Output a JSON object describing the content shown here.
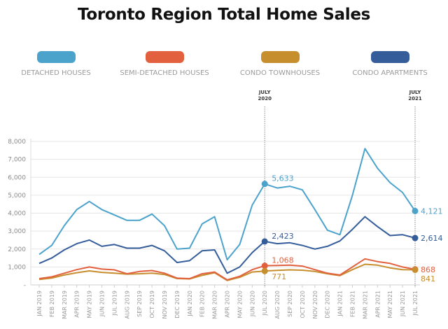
{
  "chart_data": {
    "type": "line",
    "title": "Toronto Region Total Home Sales",
    "xlabel": "",
    "ylabel": "",
    "ylim": [
      0,
      8000
    ],
    "yticks": [
      0,
      1000,
      2000,
      3000,
      4000,
      5000,
      6000,
      7000,
      8000
    ],
    "ytick_labels": [
      "-",
      "1,000",
      "2,000",
      "3,000",
      "4,000",
      "5,000",
      "6,000",
      "7,000",
      "8,000"
    ],
    "grid": true,
    "legend_placement": "top",
    "categories": [
      "JAN 2019",
      "FEB 2019",
      "MAR 2019",
      "APR 2019",
      "MAY 2019",
      "JUN 2019",
      "JUL 2019",
      "AUG 2019",
      "SEP 2019",
      "OCT 2019",
      "NOV 2019",
      "DEC 2019",
      "JAN 2020",
      "FEB 2020",
      "MAR 2020",
      "APR 2020",
      "MAY 2020",
      "JUN 2020",
      "JUL 2020",
      "AUG 2020",
      "SEP 2020",
      "OCT 2020",
      "NOV 2020",
      "DEC 2020",
      "JAN 2021",
      "FEB 2021",
      "MAR 2021",
      "APR 2021",
      "MAY 2021",
      "JUN 2021",
      "JUL 2021"
    ],
    "series": [
      {
        "name": "DETACHED HOUSES",
        "color": "#4ba3cc",
        "values": [
          1700,
          2200,
          3300,
          4200,
          4650,
          4200,
          3900,
          3600,
          3600,
          3950,
          3300,
          2000,
          2050,
          3400,
          3800,
          1400,
          2250,
          4450,
          5633,
          5400,
          5500,
          5300,
          4200,
          3050,
          2800,
          5000,
          7600,
          6500,
          5700,
          5150,
          4121
        ]
      },
      {
        "name": "SEMI-DETACHED HOUSES",
        "color": "#e2603e",
        "values": [
          350,
          450,
          650,
          850,
          1000,
          880,
          840,
          620,
          750,
          800,
          650,
          380,
          350,
          620,
          720,
          280,
          480,
          850,
          1068,
          1080,
          1100,
          1050,
          850,
          650,
          550,
          1000,
          1450,
          1300,
          1200,
          1000,
          868
        ]
      },
      {
        "name": "CONDO TOWNHOUSES",
        "color": "#c68e2d",
        "values": [
          300,
          380,
          550,
          680,
          780,
          700,
          650,
          600,
          620,
          650,
          580,
          350,
          330,
          530,
          680,
          250,
          420,
          720,
          771,
          810,
          840,
          820,
          750,
          620,
          520,
          850,
          1150,
          1100,
          950,
          850,
          841
        ]
      },
      {
        "name": "CONDO APARTMENTS",
        "color": "#345d9a",
        "values": [
          1200,
          1500,
          1950,
          2300,
          2500,
          2150,
          2250,
          2050,
          2050,
          2200,
          1900,
          1250,
          1350,
          1900,
          1950,
          650,
          1000,
          1800,
          2423,
          2300,
          2350,
          2200,
          2000,
          2150,
          2450,
          3100,
          3800,
          3250,
          2750,
          2800,
          2614
        ]
      }
    ],
    "reference_lines": [
      {
        "category": "JUL 2020",
        "label_line1": "JULY",
        "label_line2": "2020"
      },
      {
        "category": "JUL 2021",
        "label_line1": "JULY",
        "label_line2": "2021"
      }
    ],
    "annotations": [
      {
        "category": "JUL 2020",
        "series": "DETACHED HOUSES",
        "text": "5,633"
      },
      {
        "category": "JUL 2020",
        "series": "CONDO APARTMENTS",
        "text": "2,423"
      },
      {
        "category": "JUL 2020",
        "series": "SEMI-DETACHED HOUSES",
        "text": "1,068"
      },
      {
        "category": "JUL 2020",
        "series": "CONDO TOWNHOUSES",
        "text": "771"
      },
      {
        "category": "JUL 2021",
        "series": "DETACHED HOUSES",
        "text": "4,121"
      },
      {
        "category": "JUL 2021",
        "series": "CONDO APARTMENTS",
        "text": "2,614"
      },
      {
        "category": "JUL 2021",
        "series": "SEMI-DETACHED HOUSES",
        "text": "868"
      },
      {
        "category": "JUL 2021",
        "series": "CONDO TOWNHOUSES",
        "text": "841"
      }
    ]
  }
}
